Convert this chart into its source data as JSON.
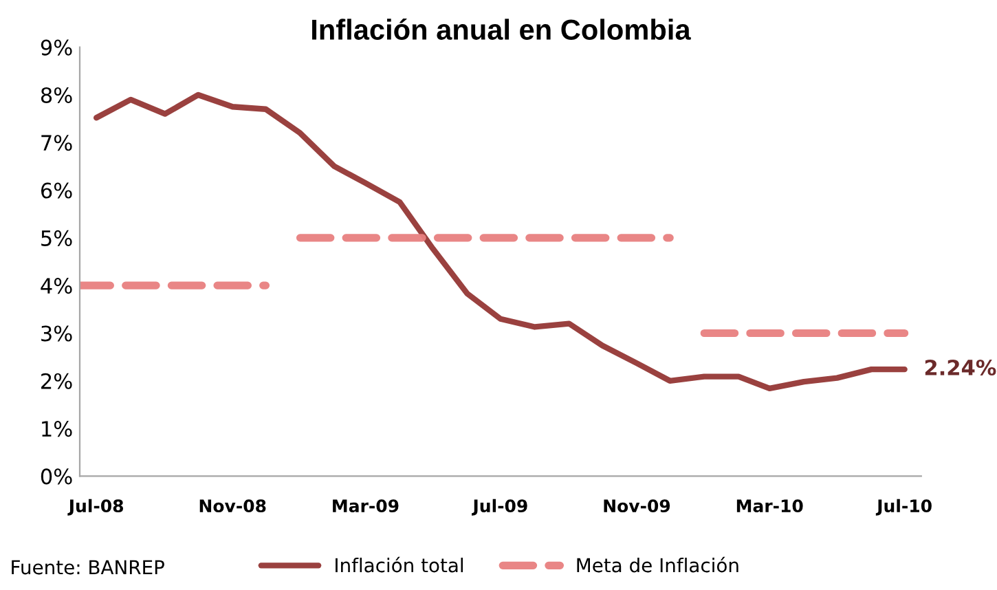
{
  "chart_data": {
    "type": "line",
    "title": "Inflación anual en Colombia",
    "x": [
      "2008-07",
      "2008-08",
      "2008-09",
      "2008-10",
      "2008-11",
      "2008-12",
      "2009-01",
      "2009-02",
      "2009-03",
      "2009-04",
      "2009-05",
      "2009-06",
      "2009-07",
      "2009-08",
      "2009-09",
      "2009-10",
      "2009-11",
      "2009-12",
      "2010-01",
      "2010-02",
      "2010-03",
      "2010-04",
      "2010-05",
      "2010-06",
      "2010-07"
    ],
    "series": [
      {
        "name": "Inflación total",
        "color": "#953735",
        "line_style": "solid",
        "values": [
          7.52,
          7.9,
          7.6,
          8.0,
          7.75,
          7.7,
          7.2,
          6.5,
          6.15,
          5.75,
          4.77,
          3.83,
          3.3,
          3.13,
          3.2,
          2.74,
          2.37,
          2.0,
          2.09,
          2.09,
          1.84,
          1.98,
          2.06,
          2.24,
          2.24
        ]
      },
      {
        "name": "Meta de Inflación",
        "color": "#e8807f",
        "line_style": "dashed",
        "x": [
          "2008-06-16",
          "2008-12"
        ],
        "values": [
          4,
          4
        ]
      },
      {
        "color": "#e8807f",
        "line_style": "dashed",
        "x": [
          "2009-01",
          "2009-12"
        ],
        "values": [
          5,
          5
        ]
      },
      {
        "color": "#e8807f",
        "line_style": "dashed",
        "x": [
          "2010-01",
          "2010-07"
        ],
        "values": [
          3,
          3
        ]
      }
    ],
    "xlim": [
      "2008-06-16",
      "2010-07-16"
    ],
    "xticks": [
      {
        "value": "2008-07",
        "label": "Jul-08"
      },
      {
        "value": "2008-11",
        "label": "Nov-08"
      },
      {
        "value": "2009-03",
        "label": "Mar-09"
      },
      {
        "value": "2009-07",
        "label": "Jul-09"
      },
      {
        "value": "2009-11",
        "label": "Nov-09"
      },
      {
        "value": "2010-03",
        "label": "Mar-10"
      },
      {
        "value": "2010-07",
        "label": "Jul-10"
      }
    ],
    "ylim": [
      0,
      9
    ],
    "yticks": [
      {
        "value": 0,
        "label": "0%"
      },
      {
        "value": 1,
        "label": "1%"
      },
      {
        "value": 2,
        "label": "2%"
      },
      {
        "value": 3,
        "label": "3%"
      },
      {
        "value": 4,
        "label": "4%"
      },
      {
        "value": 5,
        "label": "5%"
      },
      {
        "value": 6,
        "label": "6%"
      },
      {
        "value": 7,
        "label": "7%"
      },
      {
        "value": 8,
        "label": "8%"
      },
      {
        "value": 9,
        "label": "9%"
      }
    ],
    "annotations": [
      {
        "text": "2.24%",
        "x": "2010-07",
        "y": 2.24
      },
      "Fuente: BANREP"
    ],
    "grid": false,
    "legend": "bottom",
    "marker": "none"
  }
}
